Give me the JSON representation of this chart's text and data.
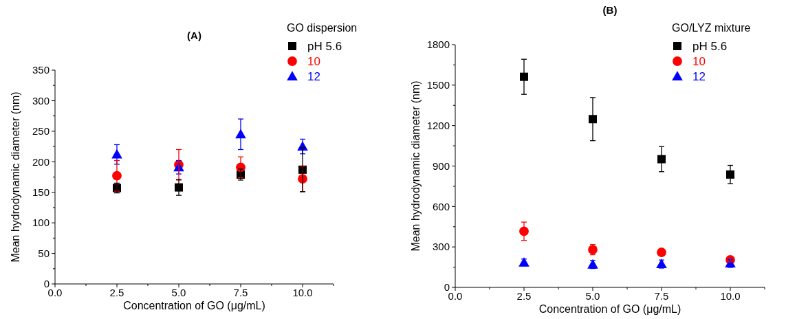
{
  "chart_data": [
    {
      "type": "scatter",
      "title": "(A)",
      "xlabel": "Concentration of GO (μg/mL)",
      "ylabel": "Mean hydrodynamic diameter (nm)",
      "legend_title": "GO dispersion",
      "legend": "top right",
      "x": [
        2.5,
        5.0,
        7.5,
        10.0
      ],
      "xlim": [
        0,
        11.25
      ],
      "xticks": [
        {
          "value": 0,
          "label": "0.0"
        },
        {
          "value": 1.25,
          "label": null
        },
        {
          "value": 2.5,
          "label": "2.5"
        },
        {
          "value": 3.75,
          "label": null
        },
        {
          "value": 5,
          "label": "5.0"
        },
        {
          "value": 6.25,
          "label": null
        },
        {
          "value": 7.5,
          "label": "7.5"
        },
        {
          "value": 8.75,
          "label": null
        },
        {
          "value": 10,
          "label": "10.0"
        },
        {
          "value": 11.25,
          "label": null
        }
      ],
      "ylim": [
        0,
        350
      ],
      "yticks": [
        0,
        {
          "value": 25,
          "label": null
        },
        50,
        {
          "value": 75,
          "label": null
        },
        100,
        {
          "value": 125,
          "label": null
        },
        150,
        {
          "value": 175,
          "label": null
        },
        200,
        {
          "value": 225,
          "label": null
        },
        250,
        {
          "value": 275,
          "label": null
        },
        300,
        {
          "value": 325,
          "label": null
        },
        350
      ],
      "series": [
        {
          "name": "pH 5.6",
          "color": "#000000",
          "marker": "square",
          "values": [
            157,
            158,
            179,
            187
          ],
          "errors": [
            8,
            13,
            9,
            36
          ]
        },
        {
          "name": "10",
          "color": "#ff0000",
          "marker": "circle",
          "values": [
            177,
            195,
            191,
            172
          ],
          "errors": [
            25,
            25,
            17,
            21
          ]
        },
        {
          "name": "12",
          "color": "#0000ff",
          "marker": "triangle",
          "values": [
            212,
            191,
            245,
            225
          ],
          "errors": [
            16,
            11,
            25,
            12
          ]
        }
      ]
    },
    {
      "type": "scatter",
      "title": "(B)",
      "xlabel": "Concentration of GO (μg/mL)",
      "ylabel": "Mean hydrodynamic diameter (nm)",
      "legend_title": "GO/LYZ mixture",
      "legend": "top right",
      "x": [
        2.5,
        5.0,
        7.5,
        10.0
      ],
      "xlim": [
        0,
        11.25
      ],
      "xticks": [
        {
          "value": 0,
          "label": "0.0"
        },
        {
          "value": 1.25,
          "label": null
        },
        {
          "value": 2.5,
          "label": "2.5"
        },
        {
          "value": 3.75,
          "label": null
        },
        {
          "value": 5,
          "label": "5.0"
        },
        {
          "value": 6.25,
          "label": null
        },
        {
          "value": 7.5,
          "label": "7.5"
        },
        {
          "value": 8.75,
          "label": null
        },
        {
          "value": 10,
          "label": "10.0"
        },
        {
          "value": 11.25,
          "label": null
        }
      ],
      "ylim": [
        0,
        1800
      ],
      "yticks": [
        0,
        {
          "value": 150,
          "label": null
        },
        300,
        {
          "value": 450,
          "label": null
        },
        600,
        {
          "value": 750,
          "label": null
        },
        900,
        {
          "value": 1050,
          "label": null
        },
        1200,
        {
          "value": 1350,
          "label": null
        },
        1500,
        {
          "value": 1650,
          "label": null
        },
        1800
      ],
      "series": [
        {
          "name": "pH 5.6",
          "color": "#000000",
          "marker": "square",
          "values": [
            1562,
            1248,
            951,
            837
          ],
          "errors": [
            130,
            160,
            93,
            68
          ]
        },
        {
          "name": "10",
          "color": "#ff0000",
          "marker": "circle",
          "values": [
            416,
            280,
            260,
            204
          ],
          "errors": [
            68,
            38,
            10,
            15
          ]
        },
        {
          "name": "12",
          "color": "#0000ff",
          "marker": "triangle",
          "values": [
            185,
            170,
            173,
            178
          ],
          "errors": [
            25,
            30,
            30,
            30
          ]
        }
      ]
    }
  ]
}
